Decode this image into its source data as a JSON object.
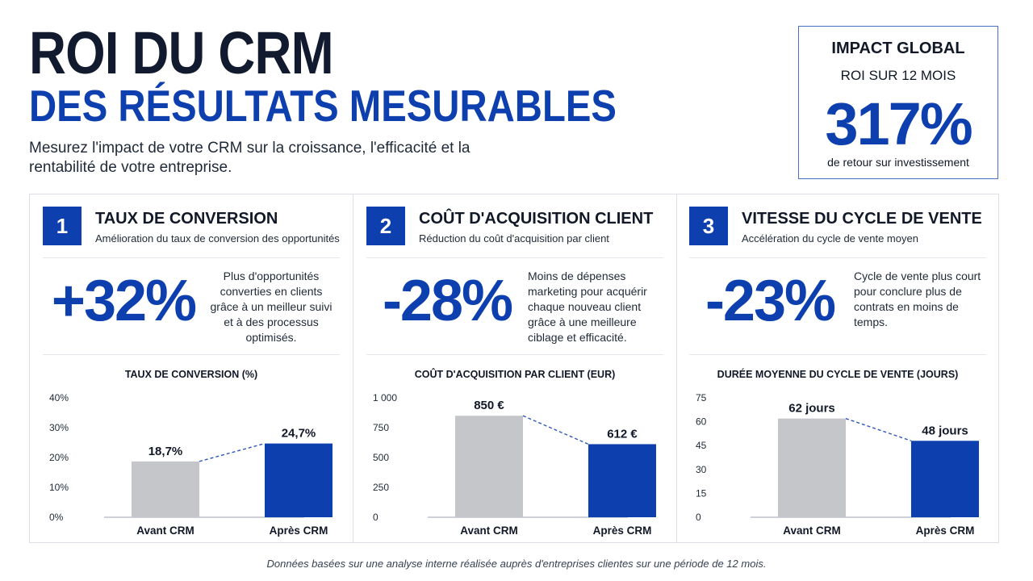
{
  "header": {
    "title_line1": "ROI DU CRM",
    "title_line2": "DES RÉSULTATS MESURABLES",
    "subtitle": "Mesurez l'impact de votre CRM sur la croissance, l'efficacité et la rentabilité de votre entreprise."
  },
  "impact": {
    "title": "IMPACT GLOBAL",
    "subtitle": "ROI SUR 12 MOIS",
    "value": "317%",
    "caption": "de retour sur investissement"
  },
  "panels": [
    {
      "number": "1",
      "title": "TAUX DE CONVERSION",
      "subtitle": "Amélioration du taux de conversion des opportunités",
      "big_value": "+32%",
      "description": "Plus d'opportunités converties en clients grâce à un meilleur suivi et à des processus optimisés."
    },
    {
      "number": "2",
      "title": "COÛT D'ACQUISITION CLIENT",
      "subtitle": "Réduction du coût d'acquisition par client",
      "big_value": "-28%",
      "description": "Moins de dépenses marketing pour acquérir chaque nouveau client grâce à une meilleure ciblage et efficacité."
    },
    {
      "number": "3",
      "title": "VITESSE DU CYCLE DE VENTE",
      "subtitle": "Accélération du cycle de vente moyen",
      "big_value": "-23%",
      "description": "Cycle de vente plus court pour conclure plus de contrats en moins de temps."
    }
  ],
  "chart_data": [
    {
      "type": "bar",
      "title": "TAUX DE CONVERSION (%)",
      "categories": [
        "Avant CRM",
        "Après CRM"
      ],
      "values": [
        18.7,
        24.7
      ],
      "data_labels": [
        "18,7%",
        "24,7%"
      ],
      "ylim": [
        0,
        40
      ],
      "yticks": [
        0,
        10,
        20,
        30,
        40
      ],
      "ytick_labels": [
        "0%",
        "10%",
        "20%",
        "30%",
        "40%"
      ],
      "bar_colors": [
        "#c4c6ca",
        "#0d3fae"
      ],
      "connector": "dashed"
    },
    {
      "type": "bar",
      "title": "COÛT D'ACQUISITION PAR CLIENT (EUR)",
      "categories": [
        "Avant CRM",
        "Après CRM"
      ],
      "values": [
        850,
        612
      ],
      "data_labels": [
        "850 €",
        "612 €"
      ],
      "ylim": [
        0,
        1000
      ],
      "yticks": [
        0,
        250,
        500,
        750,
        1000
      ],
      "ytick_labels": [
        "0",
        "250",
        "500",
        "750",
        "1 000"
      ],
      "bar_colors": [
        "#c4c6ca",
        "#0d3fae"
      ],
      "connector": "dashed"
    },
    {
      "type": "bar",
      "title": "DURÉE MOYENNE DU CYCLE DE VENTE (JOURS)",
      "categories": [
        "Avant CRM",
        "Après CRM"
      ],
      "values": [
        62,
        48
      ],
      "data_labels": [
        "62 jours",
        "48 jours"
      ],
      "ylim": [
        0,
        75
      ],
      "yticks": [
        0,
        15,
        30,
        45,
        60,
        75
      ],
      "ytick_labels": [
        "0",
        "15",
        "30",
        "45",
        "60",
        "75"
      ],
      "bar_colors": [
        "#c4c6ca",
        "#0d3fae"
      ],
      "connector": "dashed"
    }
  ],
  "footer": "Données basées sur une analyse interne réalisée auprès d'entreprises clientes sur une période de 12 mois."
}
